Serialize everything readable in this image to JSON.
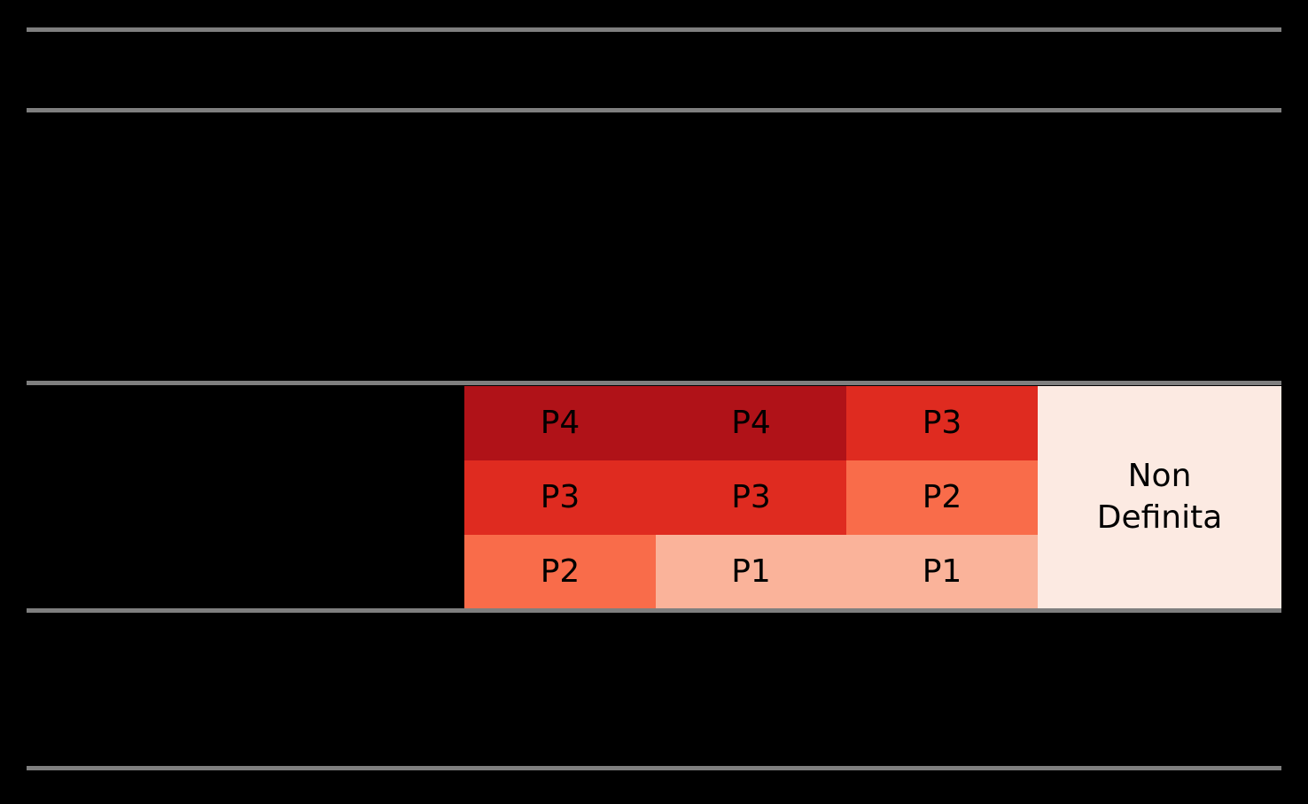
{
  "colors": {
    "background": "#000000",
    "divider": "#7f7f7f",
    "cell_text": "#000000"
  },
  "matrix": {
    "cells": [
      {
        "label": "P4",
        "color": "#b01218"
      },
      {
        "label": "P4",
        "color": "#b01218"
      },
      {
        "label": "P3",
        "color": "#df2b20"
      },
      {
        "label": "P3",
        "color": "#df2b20"
      },
      {
        "label": "P3",
        "color": "#df2b20"
      },
      {
        "label": "P2",
        "color": "#f96c4a"
      },
      {
        "label": "P2",
        "color": "#f96c4a"
      },
      {
        "label": "P1",
        "color": "#fab39a"
      },
      {
        "label": "P1",
        "color": "#fab39a"
      }
    ],
    "side": {
      "label": "Non Definita",
      "color": "#fceae2"
    }
  },
  "chart_data": {
    "type": "table",
    "rows": [
      [
        "P4",
        "P4",
        "P3"
      ],
      [
        "P3",
        "P3",
        "P2"
      ],
      [
        "P2",
        "P1",
        "P1"
      ]
    ],
    "row_span_column": "Non Definita",
    "palette": {
      "P4": "#b01218",
      "P3": "#df2b20",
      "P2": "#f96c4a",
      "P1": "#fab39a",
      "Non Definita": "#fceae2"
    },
    "layout": {
      "grid": "3 rows x 3 columns plus one merged column spanning all rows",
      "background": "#000000",
      "dividers": 5
    }
  }
}
